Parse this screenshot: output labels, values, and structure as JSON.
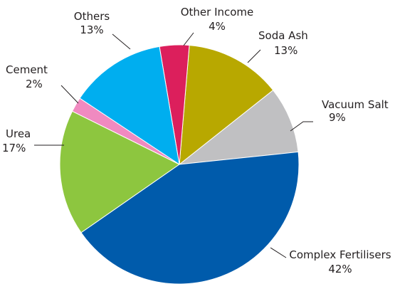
{
  "chart_data": {
    "type": "pie",
    "start_angle_deg": -6,
    "direction": "counterclockwise",
    "slices": [
      {
        "label": "Vacuum Salt",
        "pct_label": "9%",
        "value": 9,
        "color": "#c0c0c2"
      },
      {
        "label": "Soda Ash",
        "pct_label": "13%",
        "value": 13,
        "color": "#b8a800"
      },
      {
        "label": "Other Income",
        "pct_label": "4%",
        "value": 4,
        "color": "#dc1f5c"
      },
      {
        "label": "Others",
        "pct_label": "13%",
        "value": 13,
        "color": "#00aeef"
      },
      {
        "label": "Cement",
        "pct_label": "2%",
        "value": 2,
        "color": "#f08ac0"
      },
      {
        "label": "Urea",
        "pct_label": "17%",
        "value": 17,
        "color": "#8dc63f"
      },
      {
        "label": "Complex Fertilisers",
        "pct_label": "42%",
        "value": 42,
        "color": "#005bab"
      }
    ]
  }
}
